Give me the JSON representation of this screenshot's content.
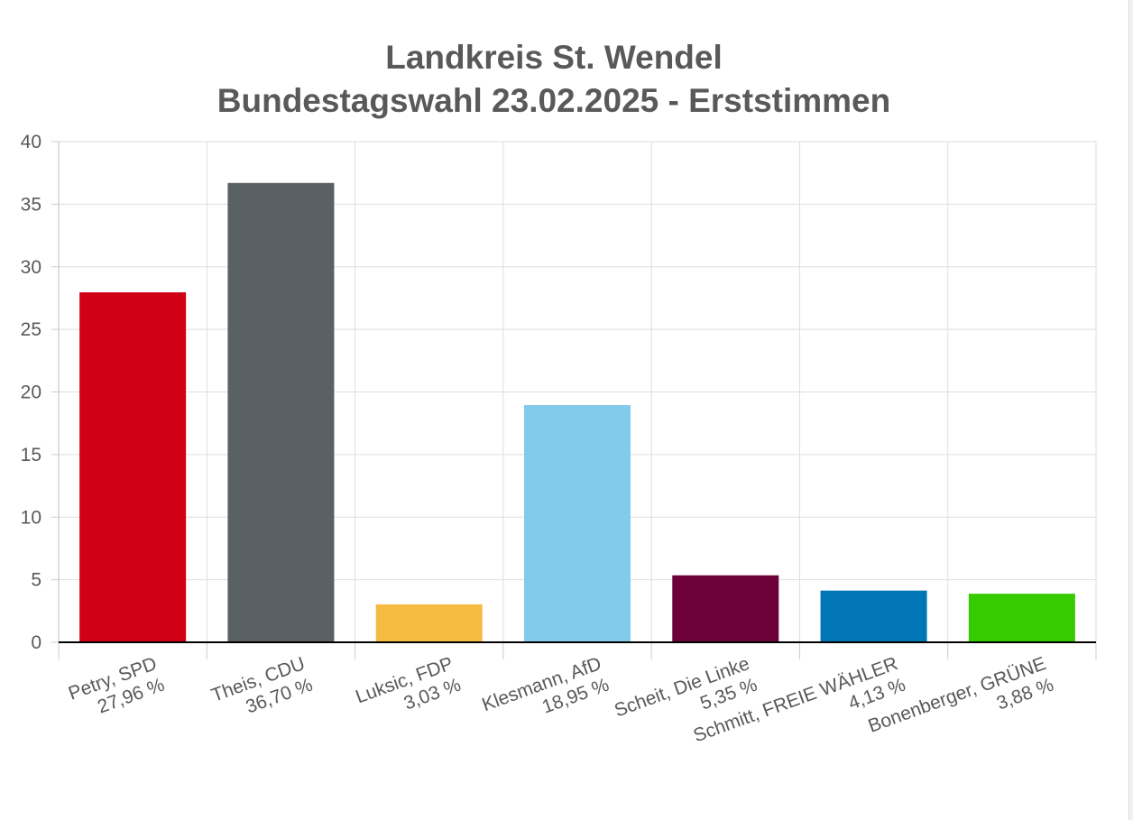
{
  "chart_data": {
    "type": "bar",
    "title": "Landkreis St. Wendel",
    "subtitle": "Bundestagswahl 23.02.2025  - Erststimmen",
    "xlabel": "",
    "ylabel": "",
    "ylim": [
      0,
      40
    ],
    "yticks": [
      0,
      5,
      10,
      15,
      20,
      25,
      30,
      35,
      40
    ],
    "grid": true,
    "legend": "none",
    "categories": [
      "Petry, SPD",
      "Theis, CDU",
      "Luksic, FDP",
      "Klesmann, AfD",
      "Scheit, Die Linke",
      "Schmitt, FREIE WÄHLER",
      "Bonenberger, GRÜNE"
    ],
    "value_labels": [
      "27,96 %",
      "36,70 %",
      "3,03 %",
      "18,95 %",
      "5,35 %",
      "4,13 %",
      "3,88 %"
    ],
    "values": [
      27.96,
      36.7,
      3.03,
      18.95,
      5.35,
      4.13,
      3.88
    ],
    "colors": [
      "#d10014",
      "#5a6164",
      "#f6bb41",
      "#82cbea",
      "#6c0039",
      "#0076b6",
      "#35cb00"
    ]
  }
}
